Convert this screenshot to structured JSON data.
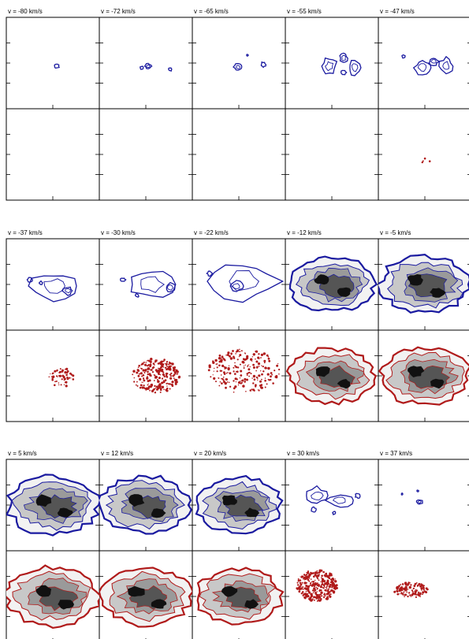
{
  "blocks": [
    {
      "labels": [
        "v = -80 km/s",
        "v = -72 km/s",
        "v = -65 km/s",
        "v = -55 km/s",
        "v = -47 km/s"
      ]
    },
    {
      "labels": [
        "v = -37 km/s",
        "v = -30 km/s",
        "v = -22 km/s",
        "v = -12 km/s",
        "v = -5 km/s"
      ]
    },
    {
      "labels": [
        "v = 5 km/s",
        "v = 12 km/s",
        "v = 20 km/s",
        "v = 30 km/s",
        "v = 37 km/s"
      ]
    }
  ],
  "colors": {
    "top_row_contour": "#1a1aa0",
    "bottom_row_contour": "#b01a1a",
    "frame": "#000000"
  }
}
